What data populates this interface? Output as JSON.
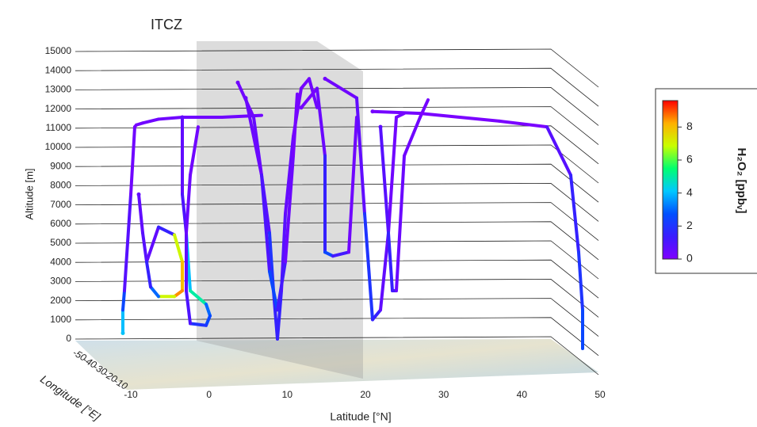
{
  "chart_data": {
    "type": "line3d",
    "title": "ITCZ",
    "y_label": "Altitude [m]",
    "x_label": "Latitude [°N]",
    "z_label": "Longitude [°E]",
    "ylim": [
      0,
      15000
    ],
    "yticks": [
      0,
      1000,
      2000,
      3000,
      4000,
      5000,
      6000,
      7000,
      8000,
      9000,
      10000,
      11000,
      12000,
      13000,
      14000,
      15000
    ],
    "xlim": [
      -10,
      50
    ],
    "xticks": [
      -10,
      0,
      10,
      20,
      30,
      40,
      50
    ],
    "zticks": [
      -50,
      -40,
      -30,
      -20,
      -10
    ],
    "colorbar": {
      "label": "H₂O₂ [ppbᵥ]",
      "clim": [
        0,
        9.6
      ],
      "ticks": [
        0,
        2,
        4,
        6,
        8
      ],
      "colormap": [
        "#7f00ff",
        "#3a1cff",
        "#0050ff",
        "#00c8ff",
        "#00ff70",
        "#c8ff00",
        "#ffb000",
        "#ff0000"
      ]
    },
    "grid": true,
    "series": [
      {
        "x": [
          -7.5,
          -7.5,
          -7.3,
          -6.5,
          -6,
          -5.8,
          -5,
          -3,
          0,
          5,
          10
        ],
        "values": [
          800,
          2000,
          3000,
          8000,
          11500,
          11600,
          11700,
          11900,
          12000,
          12000,
          12100
        ],
        "h2o2": [
          4.5,
          4,
          2.5,
          0.8,
          0.3,
          0.2,
          0.2,
          0.3,
          0.3,
          0.3,
          0.3
        ]
      },
      {
        "x": [
          -5.5,
          -5,
          -4.5,
          -3,
          -1,
          0,
          0,
          -1,
          -3,
          -4,
          -4.5
        ],
        "values": [
          8000,
          6000,
          4500,
          6300,
          5900,
          4500,
          3000,
          2700,
          2700,
          3200,
          4500
        ],
        "h2o2": [
          0.5,
          0.6,
          0.8,
          0.6,
          1.5,
          7,
          8,
          8.5,
          7,
          3,
          1.5
        ]
      },
      {
        "x": [
          0,
          0,
          0.5,
          1,
          3,
          3.5,
          3,
          1,
          0.5,
          0.5,
          1,
          2
        ],
        "values": [
          12000,
          8000,
          6000,
          3000,
          2300,
          1700,
          1200,
          1300,
          3000,
          6000,
          9000,
          11500
        ],
        "h2o2": [
          0.3,
          0.6,
          1,
          4,
          5,
          3,
          2.5,
          2,
          1,
          0.6,
          0.4,
          0.3
        ]
      },
      {
        "x": [
          7,
          9,
          10,
          11,
          11.5,
          12,
          12.5,
          13,
          14,
          15,
          16,
          17
        ],
        "values": [
          13800,
          12000,
          9000,
          6000,
          3000,
          500,
          3000,
          7000,
          11000,
          13500,
          14000,
          12500
        ],
        "h2o2": [
          0.2,
          0.3,
          0.5,
          0.8,
          2,
          1.5,
          1.5,
          0.8,
          0.5,
          0.2,
          0.2,
          0.3
        ]
      },
      {
        "x": [
          8,
          10,
          11,
          12,
          13,
          14,
          14.5
        ],
        "values": [
          13000,
          9000,
          4000,
          2000,
          4500,
          10000,
          13200
        ],
        "h2o2": [
          0.2,
          0.4,
          1,
          2.5,
          1.2,
          0.4,
          0.2
        ]
      },
      {
        "x": [
          15,
          17,
          18,
          18,
          19,
          21,
          22
        ],
        "values": [
          12500,
          13500,
          10000,
          5000,
          4800,
          5000,
          12000
        ],
        "h2o2": [
          0.2,
          0.2,
          0.4,
          1.5,
          2.5,
          1.2,
          0.3
        ]
      },
      {
        "x": [
          18,
          22,
          23,
          24,
          25,
          26,
          27,
          28
        ],
        "values": [
          14000,
          13000,
          7000,
          1500,
          2000,
          6000,
          12000,
          12200
        ],
        "h2o2": [
          0.2,
          0.3,
          0.6,
          2,
          1.5,
          0.6,
          0.3,
          0.2
        ]
      },
      {
        "x": [
          25,
          26,
          26.5,
          27,
          28,
          30,
          31
        ],
        "values": [
          11500,
          6000,
          3000,
          3000,
          10000,
          12000,
          12900
        ],
        "h2o2": [
          0.3,
          0.8,
          1.5,
          1.2,
          0.4,
          0.3,
          0.2
        ]
      },
      {
        "x": [
          24,
          30,
          40,
          46,
          49,
          50,
          50.5,
          50.5
        ],
        "values": [
          12300,
          12200,
          11800,
          11500,
          9000,
          5000,
          2000,
          0
        ],
        "h2o2": [
          0.2,
          0.2,
          0.1,
          0.1,
          0.8,
          1.5,
          2,
          2.5
        ]
      }
    ]
  }
}
